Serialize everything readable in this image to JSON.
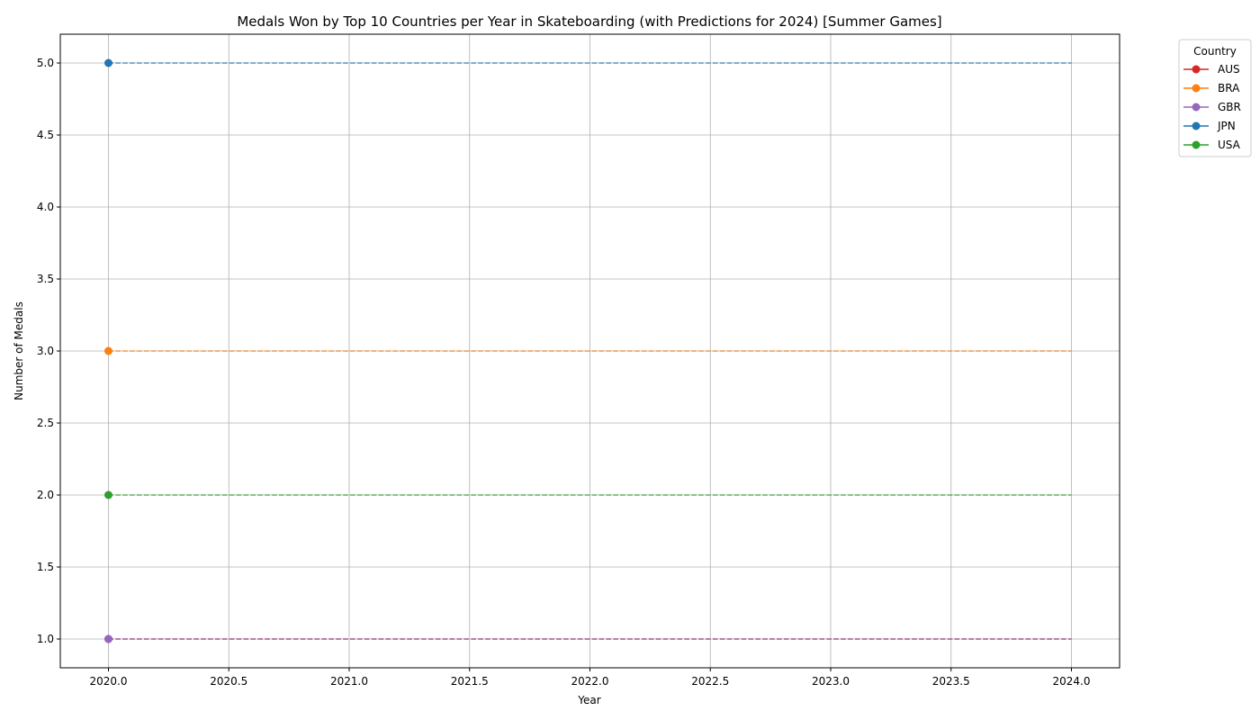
{
  "chart_data": {
    "type": "line",
    "title": "Medals Won by Top 10 Countries per Year in Skateboarding (with Predictions for 2024) [Summer Games]",
    "xlabel": "Year",
    "ylabel": "Number of Medals",
    "xlim": [
      2019.8,
      2024.2
    ],
    "ylim": [
      0.8,
      5.2
    ],
    "xticks": [
      2020.0,
      2020.5,
      2021.0,
      2021.5,
      2022.0,
      2022.5,
      2023.0,
      2023.5,
      2024.0
    ],
    "yticks": [
      1.0,
      1.5,
      2.0,
      2.5,
      3.0,
      3.5,
      4.0,
      4.5,
      5.0
    ],
    "grid": true,
    "legend": {
      "title": "Country",
      "placement": "outside-top-right"
    },
    "series": [
      {
        "name": "AUS",
        "color": "#d62728",
        "x": [
          2020
        ],
        "values": [
          1
        ],
        "prediction": {
          "x": [
            2020,
            2024
          ],
          "values": [
            1,
            1
          ]
        }
      },
      {
        "name": "BRA",
        "color": "#ff7f0e",
        "x": [
          2020
        ],
        "values": [
          3
        ],
        "prediction": {
          "x": [
            2020,
            2024
          ],
          "values": [
            3,
            3
          ]
        }
      },
      {
        "name": "GBR",
        "color": "#9467bd",
        "x": [
          2020
        ],
        "values": [
          1
        ],
        "prediction": {
          "x": [
            2020,
            2024
          ],
          "values": [
            1,
            1
          ]
        }
      },
      {
        "name": "JPN",
        "color": "#1f77b4",
        "x": [
          2020
        ],
        "values": [
          5
        ],
        "prediction": {
          "x": [
            2020,
            2024
          ],
          "values": [
            5,
            5
          ]
        }
      },
      {
        "name": "USA",
        "color": "#2ca02c",
        "x": [
          2020
        ],
        "values": [
          2
        ],
        "prediction": {
          "x": [
            2020,
            2024
          ],
          "values": [
            2,
            2
          ]
        }
      }
    ]
  }
}
